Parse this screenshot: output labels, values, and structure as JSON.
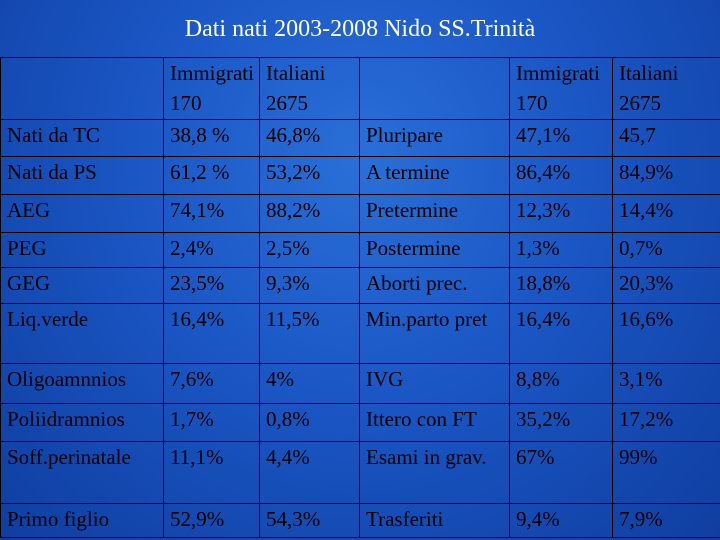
{
  "title": "Dati  nati 2003-2008  Nido SS.Trinità",
  "header": {
    "left_immigrati": "Immigrati",
    "left_immigrati_n": "170",
    "left_italiani": "Italiani",
    "left_italiani_n": "2675",
    "right_immigrati": "Immigrati",
    "right_immigrati_n": "170",
    "right_italiani": "Italiani",
    "right_italiani_n": "2675"
  },
  "rows": [
    {
      "l_label": "Nati da TC",
      "l_imm": "38,8 %",
      "l_ita": "46,8%",
      "r_label": "Pluripare",
      "r_imm": "47,1%",
      "r_ita": "45,7"
    },
    {
      "l_label": "Nati da  PS",
      "l_imm": "61,2 %",
      "l_ita": "53,2%",
      "r_label": "A termine",
      "r_imm": "86,4%",
      "r_ita": "84,9%"
    },
    {
      "l_label": "AEG",
      "l_imm": "74,1%",
      "l_ita": "88,2%",
      "r_label": "Pretermine",
      "r_imm": "12,3%",
      "r_ita": "14,4%"
    },
    {
      "l_label": "PEG",
      "l_imm": "2,4%",
      "l_ita": "2,5%",
      "r_label": "Postermine",
      "r_imm": "1,3%",
      "r_ita": "0,7%"
    },
    {
      "l_label": "GEG",
      "l_imm": "23,5%",
      "l_ita": "9,3%",
      "r_label": "Aborti prec.",
      "r_imm": "18,8%",
      "r_ita": "20,3%"
    },
    {
      "l_label": "Liq.verde",
      "l_imm": "16,4%",
      "l_ita": "11,5%",
      "r_label": "Min.parto pret",
      "r_imm": "16,4%",
      "r_ita": "16,6%"
    },
    {
      "l_label": "Oligoamnnios",
      "l_imm": "7,6%",
      "l_ita": "4%",
      "r_label": "IVG",
      "r_imm": "8,8%",
      "r_ita": "3,1%"
    },
    {
      "l_label": "Poliidramnios",
      "l_imm": "1,7%",
      "l_ita": "0,8%",
      "r_label": "Ittero con FT",
      "r_imm": "35,2%",
      "r_ita": "17,2%"
    },
    {
      "l_label": "Soff.perinatale",
      "l_imm": "11,1%",
      "l_ita": "4,4%",
      "r_label": "Esami in grav.",
      "r_imm": "67%",
      "r_ita": "99%"
    },
    {
      "l_label": "Primo figlio",
      "l_imm": "52,9%",
      "l_ita": "54,3%",
      "r_label": "Trasferiti",
      "r_imm": "9,4%",
      "r_ita": "7,9%"
    }
  ]
}
